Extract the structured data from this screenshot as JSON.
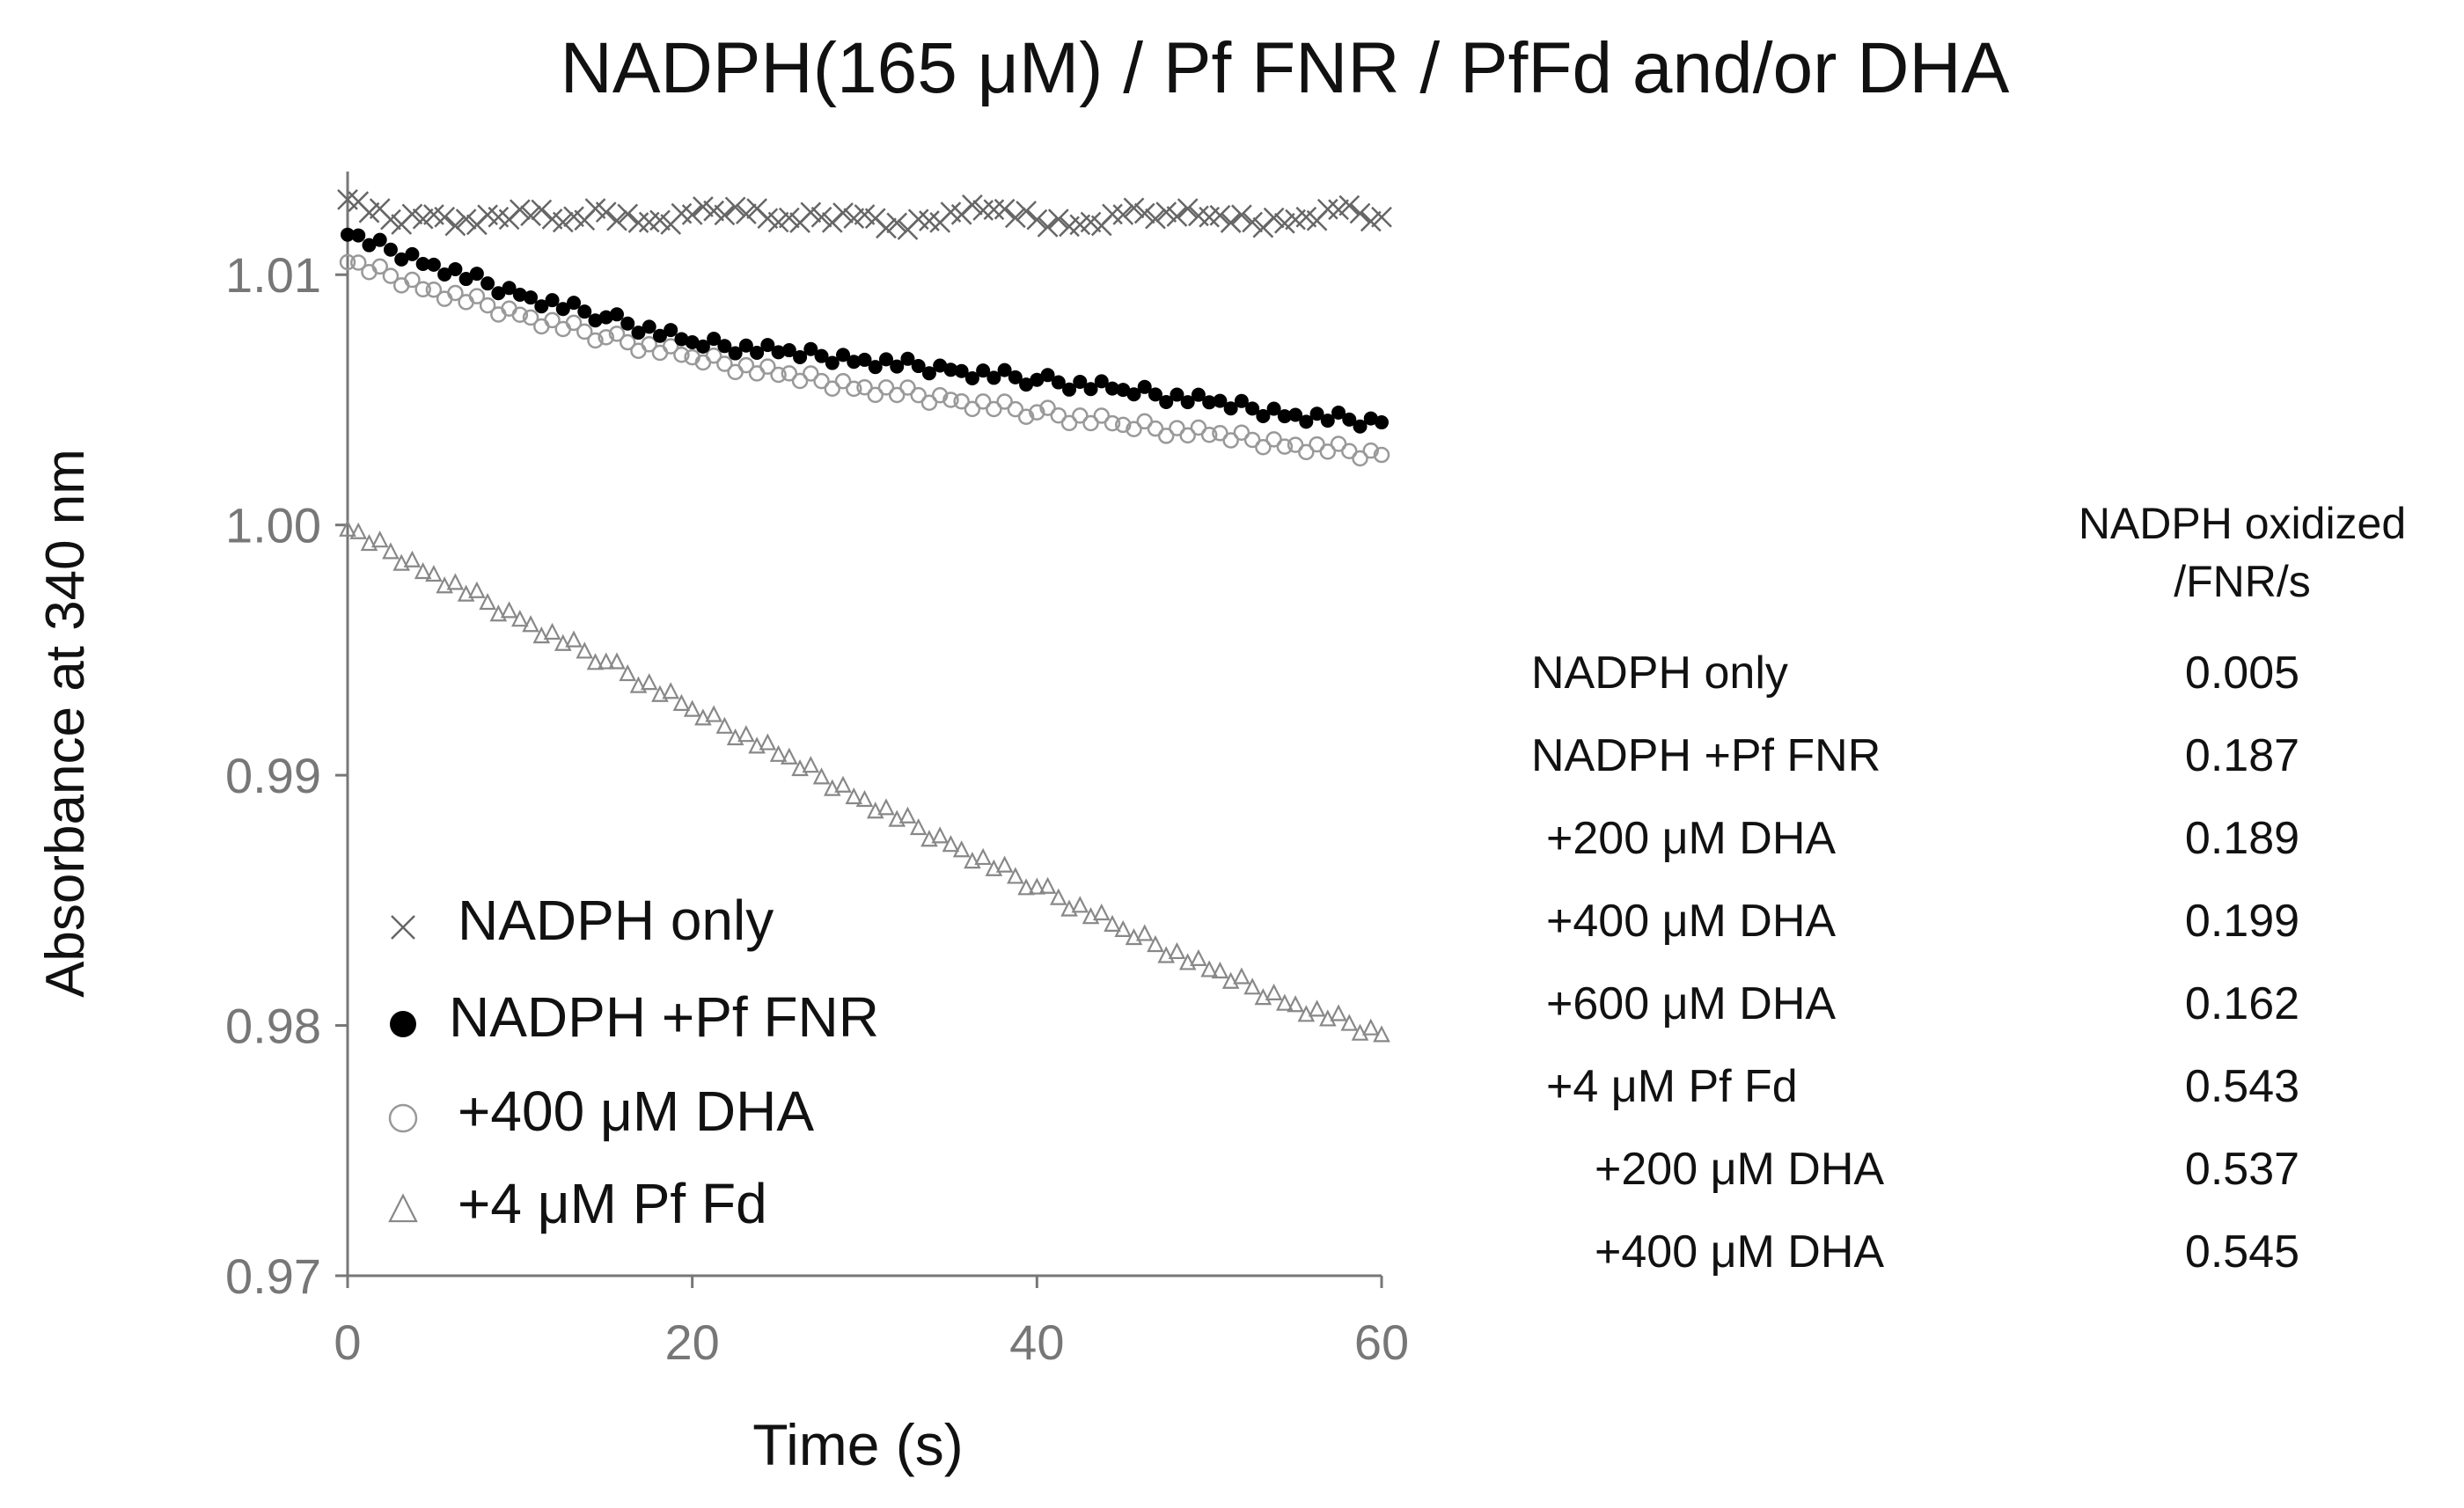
{
  "chart_data": {
    "type": "scatter",
    "title": "NADPH(165 μM) / Pf FNR / PfFd and/or DHA",
    "xlabel": "Time (s)",
    "ylabel": "Absorbance at 340 nm",
    "xlim": [
      0,
      60
    ],
    "ylim": [
      0.97,
      1.015
    ],
    "xticks": [
      0,
      20,
      40,
      60
    ],
    "xtick_labels": [
      "0",
      "20",
      "40",
      "60"
    ],
    "yticks": [
      0.97,
      0.98,
      0.99,
      1.0,
      1.01
    ],
    "ytick_labels": [
      "0.97",
      "0.98",
      "0.99",
      "1.00",
      "1.01"
    ],
    "grid": false,
    "legend_position": "lower-left",
    "series": [
      {
        "name": "NADPH only",
        "marker": "x",
        "color": "#666666",
        "points": [
          [
            0,
            1.013
          ],
          [
            2.5,
            1.0122
          ],
          [
            5,
            1.0124
          ],
          [
            7.5,
            1.012
          ],
          [
            10,
            1.0126
          ],
          [
            12.5,
            1.0121
          ],
          [
            15,
            1.0125
          ],
          [
            17.5,
            1.0121
          ],
          [
            20,
            1.0124
          ],
          [
            22.5,
            1.0127
          ],
          [
            25,
            1.0121
          ],
          [
            27.5,
            1.0123
          ],
          [
            30,
            1.0124
          ],
          [
            32.5,
            1.0118
          ],
          [
            35,
            1.0125
          ],
          [
            37.5,
            1.0126
          ],
          [
            40,
            1.0122
          ],
          [
            42.5,
            1.012
          ],
          [
            45,
            1.0124
          ],
          [
            47.5,
            1.0125
          ],
          [
            50,
            1.0123
          ],
          [
            52.5,
            1.0121
          ],
          [
            55,
            1.0122
          ],
          [
            57.5,
            1.0126
          ],
          [
            60,
            1.0123
          ]
        ]
      },
      {
        "name": "NADPH +Pf FNR",
        "marker": "filled-circle",
        "color": "#000000",
        "points": [
          [
            0,
            1.0116
          ],
          [
            5,
            1.0104
          ],
          [
            10,
            1.0092
          ],
          [
            15,
            1.0083
          ],
          [
            20,
            1.0073
          ],
          [
            25,
            1.0069
          ],
          [
            30,
            1.0066
          ],
          [
            35,
            1.0062
          ],
          [
            40,
            1.0058
          ],
          [
            45,
            1.0054
          ],
          [
            50,
            1.0049
          ],
          [
            55,
            1.0044
          ],
          [
            60,
            1.0041
          ]
        ]
      },
      {
        "name": "+400 μM DHA",
        "marker": "open-circle",
        "color": "#999999",
        "points": [
          [
            0,
            1.0105
          ],
          [
            5,
            1.0094
          ],
          [
            10,
            1.0084
          ],
          [
            15,
            1.0075
          ],
          [
            20,
            1.0067
          ],
          [
            25,
            1.006
          ],
          [
            30,
            1.0055
          ],
          [
            35,
            1.005
          ],
          [
            40,
            1.0045
          ],
          [
            45,
            1.004
          ],
          [
            50,
            1.0036
          ],
          [
            55,
            1.0032
          ],
          [
            60,
            1.0028
          ]
        ]
      },
      {
        "name": "+4 μM Pf Fd",
        "marker": "triangle",
        "color": "#888888",
        "points": [
          [
            0,
            0.9998
          ],
          [
            5,
            0.998
          ],
          [
            10,
            0.9962
          ],
          [
            15,
            0.9945
          ],
          [
            20,
            0.9926
          ],
          [
            25,
            0.9908
          ],
          [
            30,
            0.989
          ],
          [
            35,
            0.9872
          ],
          [
            40,
            0.9855
          ],
          [
            45,
            0.9838
          ],
          [
            50,
            0.9822
          ],
          [
            55,
            0.9808
          ],
          [
            60,
            0.9796
          ]
        ]
      }
    ]
  },
  "rate_table": {
    "header_line1": "NADPH oxidized",
    "header_line2": "/FNR/s",
    "rows": [
      {
        "label": "NADPH only",
        "value": "0.005"
      },
      {
        "label": "NADPH +Pf FNR",
        "value": "0.187"
      },
      {
        "label": "+200 μM DHA",
        "value": "0.189"
      },
      {
        "label": "+400 μM DHA",
        "value": "0.199"
      },
      {
        "label": "+600 μM DHA",
        "value": "0.162"
      },
      {
        "label": "+4 μM Pf Fd",
        "value": "0.543"
      },
      {
        "label": "+200 μM DHA",
        "value": "0.537"
      },
      {
        "label": "+400 μM DHA",
        "value": "0.545"
      }
    ]
  }
}
